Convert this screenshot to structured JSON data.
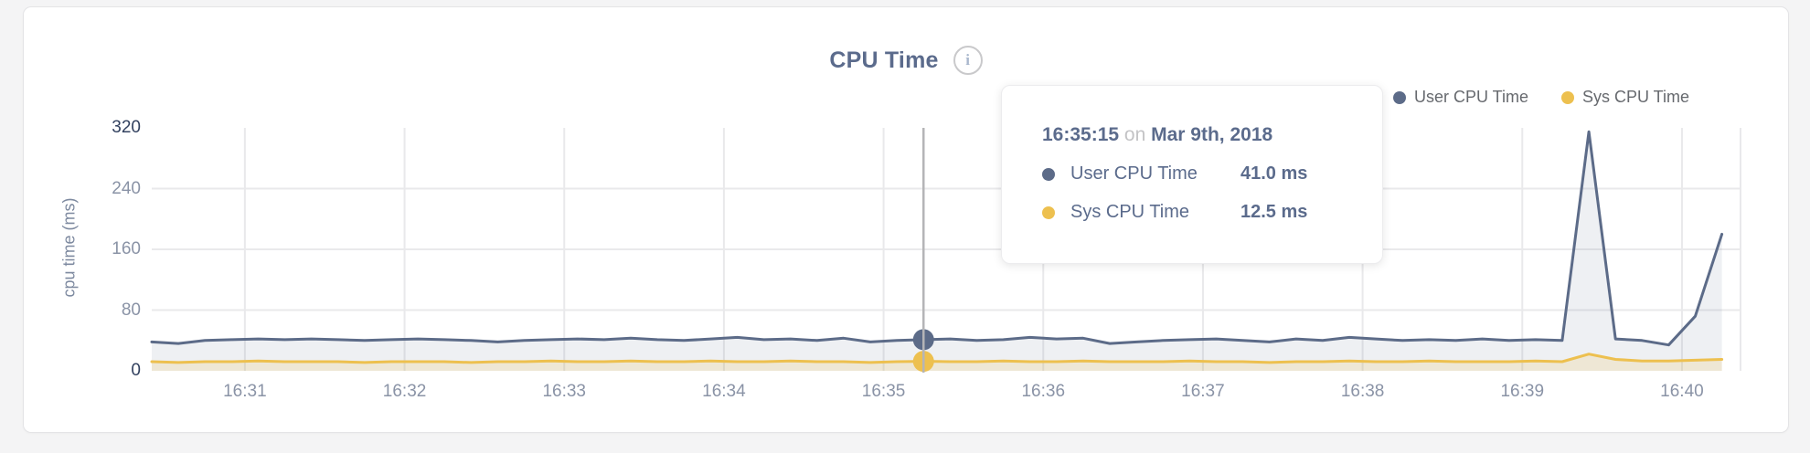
{
  "header": {
    "title": "CPU Time",
    "info_glyph": "i"
  },
  "legend": {
    "items": [
      {
        "label": "User CPU Time",
        "color": "#5c6b88"
      },
      {
        "label": "Sys CPU Time",
        "color": "#edc04f"
      }
    ]
  },
  "tooltip": {
    "time": "16:35:15",
    "on_word": "on",
    "date": "Mar 9th, 2018",
    "rows": [
      {
        "label": "User CPU Time",
        "value": "41.0 ms",
        "color": "#5c6b88"
      },
      {
        "label": "Sys CPU Time",
        "value": "12.5 ms",
        "color": "#edc04f"
      }
    ]
  },
  "colors": {
    "grid": "#e9e9eb",
    "crosshair": "#b5b5b7",
    "tick_text": "#8a93a6",
    "tick_text_extreme": "#32415f",
    "title_text": "#5b6b8c"
  },
  "chart_data": {
    "type": "area",
    "title": "CPU Time",
    "xlabel": "",
    "ylabel": "cpu time (ms)",
    "ylim": [
      0,
      320
    ],
    "y_ticks": [
      0,
      80,
      160,
      240,
      320
    ],
    "x_tick_labels": [
      "16:31",
      "16:32",
      "16:33",
      "16:34",
      "16:35",
      "16:36",
      "16:37",
      "16:38",
      "16:39",
      "16:40"
    ],
    "xlim": [
      "16:30:25",
      "16:40:22"
    ],
    "x_start": "16:30:25",
    "interval_s": 10,
    "grid": true,
    "legend_position": "top-right",
    "series": [
      {
        "name": "User CPU Time",
        "color": "#5c6b88",
        "fill": "rgba(92,107,136,0.10)",
        "values": [
          38,
          36,
          40,
          41,
          42,
          41,
          42,
          41,
          40,
          41,
          42,
          41,
          40,
          38,
          40,
          41,
          42,
          41,
          43,
          41,
          40,
          42,
          44,
          41,
          42,
          40,
          43,
          38,
          40,
          41,
          42,
          40,
          41,
          44,
          42,
          43,
          36,
          38,
          40,
          41,
          42,
          40,
          38,
          42,
          40,
          44,
          42,
          40,
          41,
          40,
          42,
          40,
          41,
          40,
          315,
          42,
          40,
          34,
          72,
          180
        ]
      },
      {
        "name": "Sys CPU Time",
        "color": "#edc04f",
        "fill": "rgba(237,192,79,0.18)",
        "values": [
          12,
          11,
          12,
          12,
          13,
          12,
          12,
          12,
          11,
          12,
          12,
          12,
          11,
          12,
          12,
          13,
          12,
          12,
          13,
          12,
          12,
          13,
          12,
          12,
          13,
          12,
          12,
          11,
          12,
          12.5,
          12,
          12,
          13,
          12,
          12,
          13,
          12,
          12,
          12,
          13,
          12,
          12,
          11,
          12,
          12,
          13,
          12,
          12,
          13,
          12,
          12,
          12,
          13,
          12,
          22,
          15,
          13,
          13,
          14,
          15
        ]
      }
    ],
    "highlight": {
      "index": 29,
      "time": "16:35:15",
      "date": "Mar 9th, 2018",
      "user_value_ms": 41.0,
      "sys_value_ms": 12.5
    }
  }
}
